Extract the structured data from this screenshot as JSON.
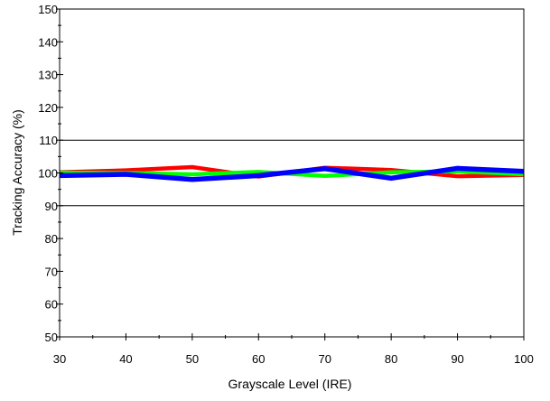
{
  "chart_data": {
    "type": "line",
    "title": "",
    "xlabel": "Grayscale Level (IRE)",
    "ylabel": "Tracking Accuracy (%)",
    "xlim": [
      30,
      100
    ],
    "ylim": [
      50,
      150
    ],
    "x_ticks": [
      30,
      40,
      50,
      60,
      70,
      80,
      90,
      100
    ],
    "y_ticks": [
      50,
      60,
      70,
      80,
      90,
      100,
      110,
      120,
      130,
      140,
      150
    ],
    "reference_lines": [
      90,
      110
    ],
    "grid": false,
    "x": [
      30,
      40,
      50,
      60,
      70,
      80,
      90,
      100
    ],
    "series": [
      {
        "color": "#ff0000",
        "values": [
          100.2,
          100.8,
          101.8,
          98.9,
          101.6,
          100.9,
          99.0,
          99.4
        ]
      },
      {
        "color": "#00ff00",
        "values": [
          100.1,
          100.0,
          99.6,
          100.3,
          99.1,
          100.2,
          100.5,
          99.6
        ]
      },
      {
        "color": "#0000ff",
        "values": [
          99.2,
          99.6,
          98.0,
          99.2,
          101.3,
          98.4,
          101.4,
          100.5
        ]
      }
    ]
  }
}
